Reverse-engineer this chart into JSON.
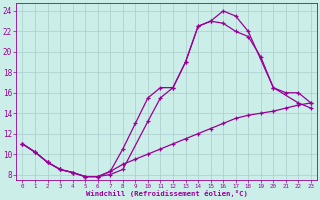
{
  "xlabel": "Windchill (Refroidissement éolien,°C)",
  "bg_color": "#cceee8",
  "line_color": "#990099",
  "grid_color": "#aacccc",
  "xlim": [
    -0.5,
    23.5
  ],
  "ylim": [
    7.5,
    24.8
  ],
  "xticks": [
    0,
    1,
    2,
    3,
    4,
    5,
    6,
    7,
    8,
    9,
    10,
    11,
    12,
    13,
    14,
    15,
    16,
    17,
    18,
    19,
    20,
    21,
    22,
    23
  ],
  "yticks": [
    8,
    10,
    12,
    14,
    16,
    18,
    20,
    22,
    24
  ],
  "curve_upper_x": [
    0,
    1,
    2,
    3,
    4,
    5,
    6,
    7,
    8,
    10,
    11,
    12,
    13,
    14,
    15,
    16,
    17,
    18,
    20,
    22,
    23
  ],
  "curve_upper_y": [
    11,
    10.2,
    9.2,
    8.5,
    8.2,
    7.8,
    7.8,
    8.0,
    8.5,
    13.2,
    15.5,
    16.5,
    19.0,
    22.5,
    23.0,
    24.0,
    23.5,
    22.0,
    16.5,
    15.0,
    14.5
  ],
  "curve_mid_x": [
    0,
    1,
    2,
    3,
    4,
    5,
    6,
    7,
    8,
    9,
    10,
    11,
    12,
    13,
    14,
    15,
    16,
    17,
    18,
    19,
    20,
    21,
    22,
    23
  ],
  "curve_mid_y": [
    11,
    10.2,
    9.2,
    8.5,
    8.2,
    7.8,
    7.8,
    8.3,
    10.5,
    13.0,
    15.5,
    16.5,
    16.5,
    19.0,
    22.5,
    23.0,
    22.8,
    22.0,
    21.5,
    19.5,
    16.5,
    16.0,
    16.0,
    15.0
  ],
  "curve_lower_x": [
    0,
    1,
    2,
    3,
    4,
    5,
    6,
    7,
    8,
    9,
    10,
    11,
    12,
    13,
    14,
    15,
    16,
    17,
    18,
    19,
    20,
    21,
    22,
    23
  ],
  "curve_lower_y": [
    11,
    10.2,
    9.2,
    8.5,
    8.2,
    7.8,
    7.8,
    8.3,
    9.0,
    9.5,
    10.0,
    10.5,
    11.0,
    11.5,
    12.0,
    12.5,
    13.0,
    13.5,
    13.8,
    14.0,
    14.2,
    14.5,
    14.8,
    15.0
  ]
}
